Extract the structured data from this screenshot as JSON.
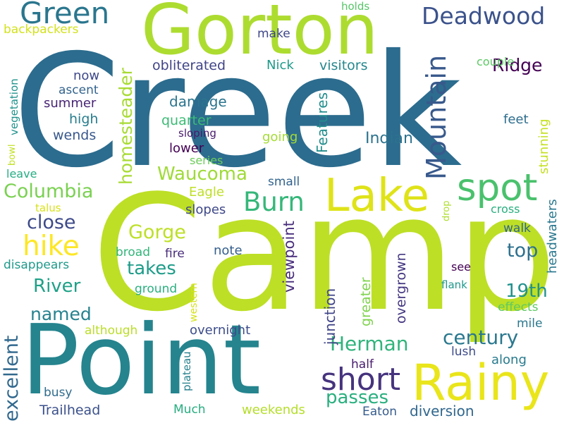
{
  "words": [
    {
      "text": "Creek",
      "color": "#2c6c8e"
    },
    {
      "text": "Camp",
      "color": "#bddf26"
    },
    {
      "text": "Point",
      "color": "#25848e"
    },
    {
      "text": "Gorton",
      "color": "#addc30"
    },
    {
      "text": "Rainy",
      "color": "#e9e51a"
    },
    {
      "text": "Lake",
      "color": "#dfe318"
    },
    {
      "text": "spot",
      "color": "#4ac16d"
    },
    {
      "text": "Green",
      "color": "#2a768e"
    },
    {
      "text": "Deadwood",
      "color": "#3b528b"
    },
    {
      "text": "Mountain",
      "color": "#38598c"
    },
    {
      "text": "short",
      "color": "#46337e"
    },
    {
      "text": "Burn",
      "color": "#35b779"
    },
    {
      "text": "hike",
      "color": "#fde725"
    },
    {
      "text": "Columbia",
      "color": "#7ad151"
    },
    {
      "text": "Waucoma",
      "color": "#a0da39"
    },
    {
      "text": "Herman",
      "color": "#2fb47c"
    },
    {
      "text": "century",
      "color": "#2a788e"
    },
    {
      "text": "19th",
      "color": "#21918c"
    },
    {
      "text": "excellent",
      "color": "#31688e"
    },
    {
      "text": "close",
      "color": "#3e4a89"
    },
    {
      "text": "River",
      "color": "#1fa187"
    },
    {
      "text": "named",
      "color": "#26828e"
    },
    {
      "text": "takes",
      "color": "#1e9c89"
    },
    {
      "text": "Gorge",
      "color": "#bddf26"
    },
    {
      "text": "Ridge",
      "color": "#440154"
    },
    {
      "text": "top",
      "color": "#2d708e"
    },
    {
      "text": "homesteader",
      "color": "#a8db34"
    },
    {
      "text": "Features",
      "color": "#228d8d"
    },
    {
      "text": "passes",
      "color": "#29af7f"
    },
    {
      "text": "Indian",
      "color": "#2c728e"
    },
    {
      "text": "obliterated",
      "color": "#414487"
    },
    {
      "text": "viewpoint",
      "color": "#472d7b"
    },
    {
      "text": "junction",
      "color": "#404588"
    },
    {
      "text": "overgrown",
      "color": "#453781"
    },
    {
      "text": "greater",
      "color": "#7fd34e"
    },
    {
      "text": "backpackers",
      "color": "#d2e21b"
    },
    {
      "text": "visitors",
      "color": "#24878e"
    },
    {
      "text": "Nick",
      "color": "#1e9b8a"
    },
    {
      "text": "couple",
      "color": "#5cc863"
    },
    {
      "text": "now",
      "color": "#3e4989"
    },
    {
      "text": "ascent",
      "color": "#33638d"
    },
    {
      "text": "summer",
      "color": "#482475"
    },
    {
      "text": "high",
      "color": "#287d8e"
    },
    {
      "text": "wends",
      "color": "#38588c"
    },
    {
      "text": "damage",
      "color": "#2b748e"
    },
    {
      "text": "quarter",
      "color": "#3bbb75"
    },
    {
      "text": "sloping",
      "color": "#481a6c"
    },
    {
      "text": "lower",
      "color": "#440154"
    },
    {
      "text": "going",
      "color": "#a5db36"
    },
    {
      "text": "series",
      "color": "#6ccd5a"
    },
    {
      "text": "feet",
      "color": "#2e6d8e"
    },
    {
      "text": "stunning",
      "color": "#c5e021"
    },
    {
      "text": "Eagle",
      "color": "#bddf26"
    },
    {
      "text": "slopes",
      "color": "#3f4889"
    },
    {
      "text": "small",
      "color": "#32648e"
    },
    {
      "text": "make",
      "color": "#3f4788"
    },
    {
      "text": "holds",
      "color": "#56c667"
    },
    {
      "text": "vegetation",
      "color": "#20928c"
    },
    {
      "text": "bowl",
      "color": "#c2df23"
    },
    {
      "text": "leave",
      "color": "#25ac82"
    },
    {
      "text": "talus",
      "color": "#d8e219"
    },
    {
      "text": "fire",
      "color": "#472c7a"
    },
    {
      "text": "broad",
      "color": "#32b67a"
    },
    {
      "text": "note",
      "color": "#355f8d"
    },
    {
      "text": "ground",
      "color": "#2ab07f"
    },
    {
      "text": "western",
      "color": "#d5e21a"
    },
    {
      "text": "disappears",
      "color": "#1f9a8a"
    },
    {
      "text": "although",
      "color": "#bade28"
    },
    {
      "text": "overnight",
      "color": "#3d4d8a"
    },
    {
      "text": "plateau",
      "color": "#26818e"
    },
    {
      "text": "Much",
      "color": "#27ad81"
    },
    {
      "text": "Trailhead",
      "color": "#3b518b"
    },
    {
      "text": "weekends",
      "color": "#b5de2b"
    },
    {
      "text": "Eaton",
      "color": "#365c8d"
    },
    {
      "text": "diversion",
      "color": "#31678e"
    },
    {
      "text": "busy",
      "color": "#2f6c8e"
    },
    {
      "text": "half",
      "color": "#481b6d"
    },
    {
      "text": "lush",
      "color": "#3e4c8a"
    },
    {
      "text": "along",
      "color": "#297b8e"
    },
    {
      "text": "mile",
      "color": "#2a788e"
    },
    {
      "text": "effects",
      "color": "#5ec962"
    },
    {
      "text": "flank",
      "color": "#1f988b"
    },
    {
      "text": "see",
      "color": "#440154"
    },
    {
      "text": "headwaters",
      "color": "#2a778e"
    },
    {
      "text": "cross",
      "color": "#29af7f"
    },
    {
      "text": "walk",
      "color": "#31668e"
    },
    {
      "text": "drop",
      "color": "#b0dd2f"
    }
  ]
}
